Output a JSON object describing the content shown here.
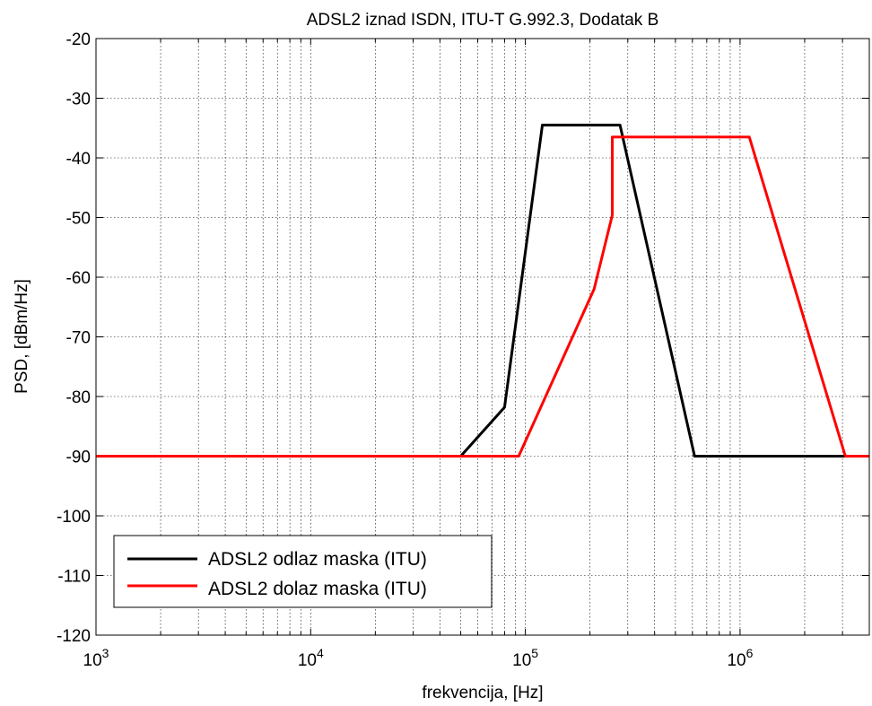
{
  "chart_data": {
    "type": "line",
    "title": "ADSL2 iznad ISDN, ITU-T G.992.3, Dodatak B",
    "xlabel": "frekvencija, [Hz]",
    "ylabel": "PSD, [dBm/Hz]",
    "x_scale": "log",
    "xlim": [
      1000,
      4000000
    ],
    "ylim": [
      -120,
      -20
    ],
    "grid": true,
    "legend_position": "bottom-left",
    "y_ticks": [
      -20,
      -30,
      -40,
      -50,
      -60,
      -70,
      -80,
      -90,
      -100,
      -110,
      -120
    ],
    "x_ticks": [
      {
        "base": "10",
        "exp": "3",
        "value": 1000
      },
      {
        "base": "10",
        "exp": "4",
        "value": 10000
      },
      {
        "base": "10",
        "exp": "5",
        "value": 100000
      },
      {
        "base": "10",
        "exp": "6",
        "value": 1000000
      }
    ],
    "series": [
      {
        "name": "ADSL2 odlaz maska (ITU)",
        "color": "#000000",
        "x": [
          1000,
          50000,
          80000,
          120000,
          276000,
          614000,
          4000000
        ],
        "y": [
          -90,
          -90,
          -81.8,
          -34.5,
          -34.5,
          -90,
          -90
        ]
      },
      {
        "name": "ADSL2 dolaz maska (ITU)",
        "color": "#ff0000",
        "x": [
          1000,
          93100,
          209000,
          254000,
          254000,
          1104000,
          3093000,
          4000000
        ],
        "y": [
          -90,
          -90,
          -62,
          -49.6,
          -36.5,
          -36.5,
          -90,
          -90
        ]
      }
    ]
  }
}
